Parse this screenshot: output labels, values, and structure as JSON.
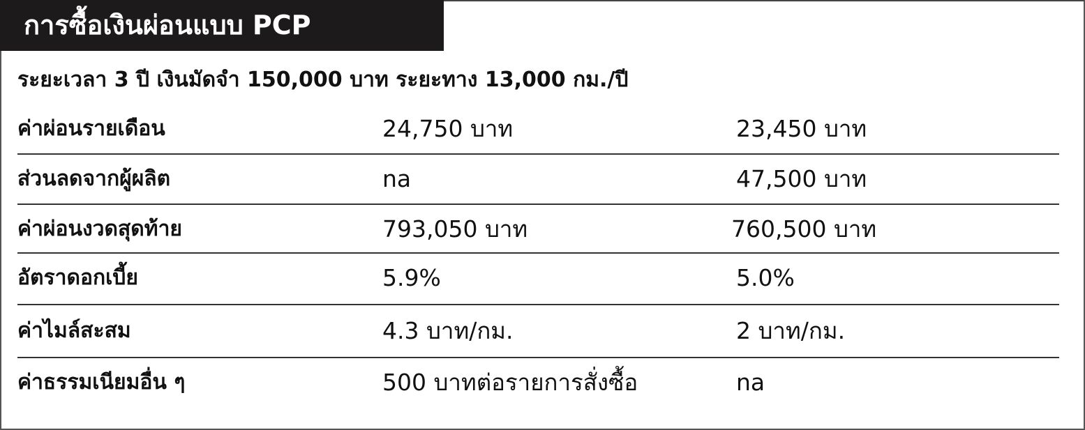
{
  "title": "การซื้อเงินผ่อนแบบ PCP",
  "subtitle": "ระยะเวลา 3 ปี เงินมัดจำ 150,000 บาท ระยะทาง 13,000 กม./ปี",
  "rows": [
    {
      "label": "ค่าผ่อนรายเดือน",
      "col1": "24,750 บาท",
      "col2": "23,450 บาท"
    },
    {
      "label": "ส่วนลดจากผู้ผลิต",
      "col1": "na",
      "col2": "47,500 บาท"
    },
    {
      "label": "ค่าผ่อนงวดสุดท้าย",
      "col1": "793,050 บาท",
      "col2": "760,500 บาท"
    },
    {
      "label": "อัตราดอกเบี้ย",
      "col1": "5.9%",
      "col2": "5.0%"
    },
    {
      "label": "ค่าไมล์สะสม",
      "col1": "4.3 บาท/กม.",
      "col2": "2 บาท/กม."
    },
    {
      "label": "ค่าธรรมเนียมอื่น ๆ",
      "col1": "500 บาทต่อรายการสั่งซื้อ",
      "col2": "na"
    }
  ],
  "colors": {
    "title_bg": "#1c1a1b",
    "title_text": "#ffffff",
    "divider": "#333333"
  }
}
